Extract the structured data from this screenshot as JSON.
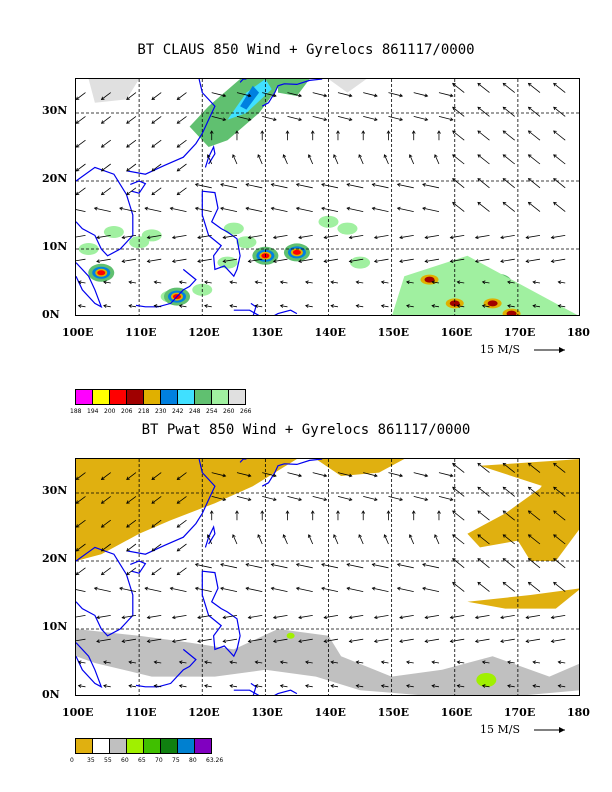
{
  "panels": [
    {
      "title": "BT CLAUS 850 Wind + Gyrelocs 861117/0000",
      "x_ticks": [
        "100E",
        "110E",
        "120E",
        "130E",
        "140E",
        "150E",
        "160E",
        "170E",
        "180"
      ],
      "y_ticks": [
        "0N",
        "10N",
        "20N",
        "30N"
      ],
      "reference_vector": "15 M/S",
      "legend": {
        "colors": [
          "#ff00ff",
          "#ffff00",
          "#ff0000",
          "#a00000",
          "#e0b000",
          "#0080e0",
          "#40e0ff",
          "#60c070",
          "#a0f0a0",
          "#e0e0e0"
        ],
        "labels": [
          "188",
          "194",
          "200",
          "206",
          "218",
          "230",
          "242",
          "248",
          "254",
          "260",
          "266"
        ]
      }
    },
    {
      "title": "BT Pwat 850 Wind + Gyrelocs 861117/0000",
      "x_ticks": [
        "100E",
        "110E",
        "120E",
        "130E",
        "140E",
        "150E",
        "160E",
        "170E",
        "180"
      ],
      "y_ticks": [
        "0N",
        "10N",
        "20N",
        "30N"
      ],
      "reference_vector": "15 M/S",
      "legend": {
        "colors": [
          "#e0b010",
          "#ffffff",
          "#c0c0c0",
          "#a0f000",
          "#40c000",
          "#108010",
          "#0080d0",
          "#8000c0"
        ],
        "labels": [
          "0",
          "35",
          "55",
          "60",
          "65",
          "70",
          "75",
          "80",
          "63.26"
        ]
      }
    }
  ],
  "map_extent": {
    "lon": [
      100,
      180
    ],
    "lat": [
      0,
      35
    ]
  }
}
